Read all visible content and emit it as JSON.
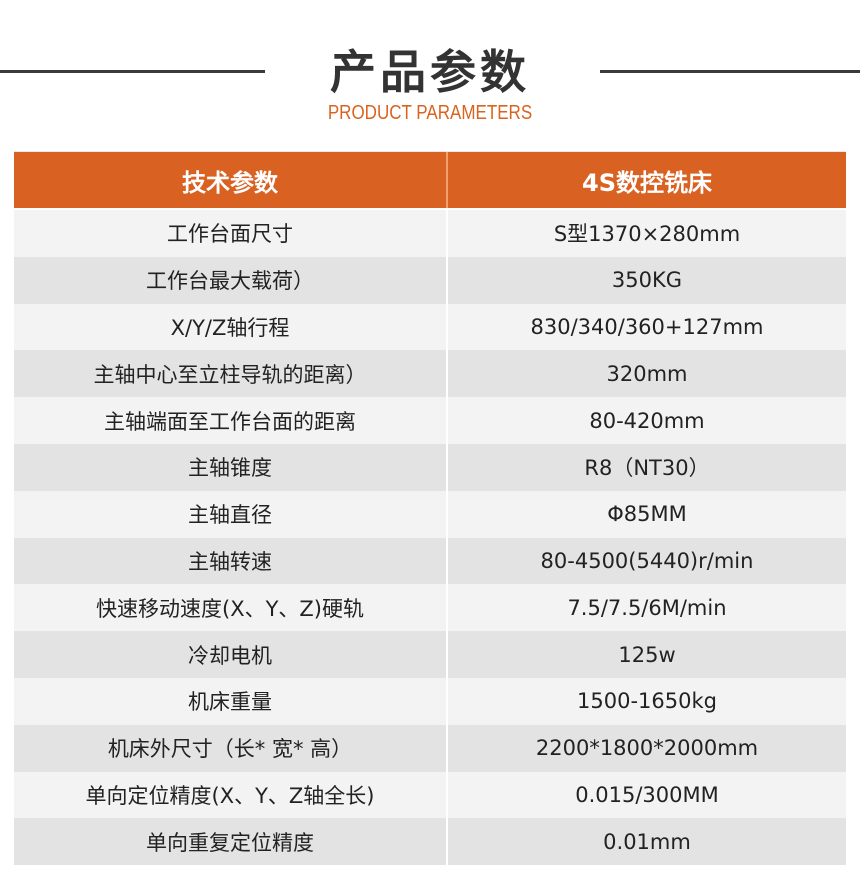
{
  "heading": {
    "title": "产品参数",
    "subtitle": "PRODUCT PARAMETERS"
  },
  "colors": {
    "accent": "#d96222",
    "row_light": "#f3f3f3",
    "row_dark": "#e3e3e3"
  },
  "table": {
    "headers": [
      "技术参数",
      "4S数控铣床"
    ],
    "rows": [
      [
        "工作台面尺寸",
        "S型1370×280mm"
      ],
      [
        "工作台最大载荷）",
        "350KG"
      ],
      [
        "X/Y/Z轴行程",
        "830/340/360+127mm"
      ],
      [
        "主轴中心至立柱导轨的距离）",
        "320mm"
      ],
      [
        "主轴端面至工作台面的距离",
        "80-420mm"
      ],
      [
        "主轴锥度",
        "R8（NT30）"
      ],
      [
        "主轴直径",
        "Φ85MM"
      ],
      [
        "主轴转速",
        "80-4500(5440)r/min"
      ],
      [
        "快速移动速度(X、Y、Z)硬轨",
        "7.5/7.5/6M/min"
      ],
      [
        "冷却电机",
        "125w"
      ],
      [
        "机床重量",
        "1500-1650kg"
      ],
      [
        "机床外尺寸（长* 宽* 高）",
        "2200*1800*2000mm"
      ],
      [
        "单向定位精度(X、Y、Z轴全长)",
        "0.015/300MM"
      ],
      [
        "单向重复定位精度",
        "0.01mm"
      ]
    ]
  }
}
